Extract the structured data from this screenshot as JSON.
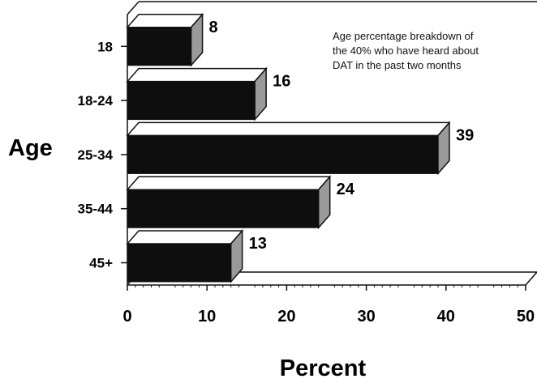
{
  "chart_data": {
    "type": "bar",
    "orientation": "horizontal",
    "style": "3d",
    "categories": [
      "18",
      "18-24",
      "25-34",
      "35-44",
      "45+"
    ],
    "values": [
      8,
      16,
      39,
      24,
      13
    ],
    "data_labels": [
      "8",
      "16",
      "39",
      "24",
      "13"
    ],
    "xlabel": "Percent",
    "ylabel": "Age",
    "xlim": [
      0,
      50
    ],
    "xticks": [
      "0",
      "10",
      "20",
      "30",
      "40",
      "50"
    ],
    "annotation": [
      "Age percentage breakdown of",
      "the 40% who have heard about",
      "DAT in the past two months"
    ],
    "grid": false,
    "legend": "none",
    "colors": {
      "bar_front": "#0e0e0e",
      "bar_top": "#ffffff",
      "bar_side": "#9a9a9a",
      "frame": "#111111"
    }
  }
}
